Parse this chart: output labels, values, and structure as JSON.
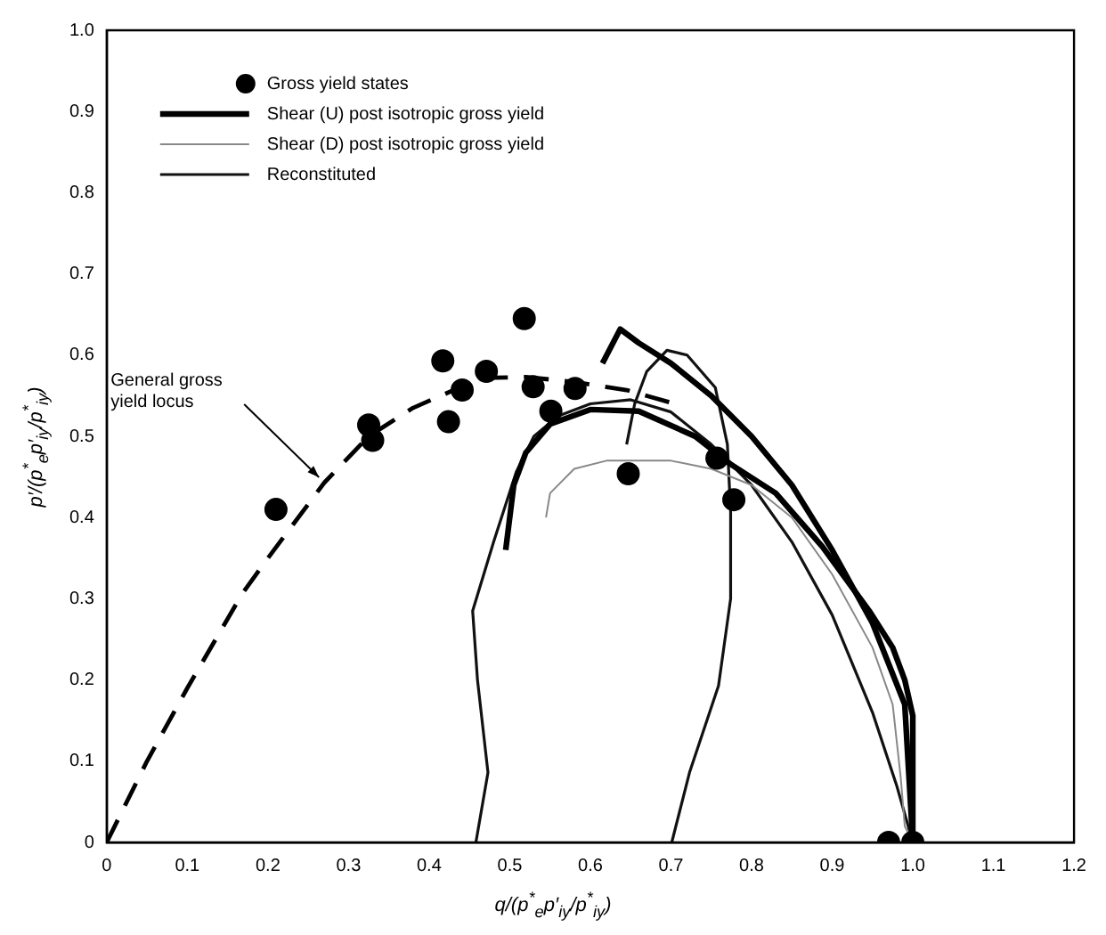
{
  "chart_data": {
    "type": "line",
    "xlabel": "q/(p$^{*}$$_{e}$p′$_{iy}$/p$^{*}$$_{iy}$)",
    "ylabel": "p′/(p$^{*}$$_{e}$p′$_{iy}$/p$^{*}$$_{iy}$)",
    "xlim": [
      0,
      1.2
    ],
    "ylim": [
      0,
      1.0
    ],
    "xticks": [
      0,
      0.1,
      0.2,
      0.3,
      0.4,
      0.5,
      0.6,
      0.7,
      0.8,
      0.9,
      {
        "value": 1,
        "label": "1.0"
      },
      1.1,
      1.2
    ],
    "yticks": [
      0,
      0.1,
      0.2,
      0.3,
      0.4,
      0.5,
      0.6,
      0.7,
      0.8,
      0.9,
      {
        "value": 1,
        "label": "1.0"
      }
    ],
    "grid": false,
    "legend": "top left",
    "series": [
      {
        "name": "Gross yield states",
        "type": "scatter",
        "marker": "circle",
        "color": "#000000",
        "x": [
          0.21,
          0.325,
          0.33,
          0.417,
          0.424,
          0.441,
          0.471,
          0.518,
          0.529,
          0.551,
          0.581,
          0.647,
          0.757,
          0.778,
          0.97,
          1.0
        ],
        "values": [
          0.41,
          0.514,
          0.495,
          0.593,
          0.518,
          0.557,
          0.58,
          0.645,
          0.561,
          0.531,
          0.559,
          0.454,
          0.473,
          0.422,
          0,
          0
        ]
      },
      {
        "name": "Shear (U) post isotropic gross yield",
        "color": "#000000",
        "x": [
          0.495,
          0.505,
          0.52,
          0.55,
          0.6,
          0.66,
          0.73,
          0.775,
          0.83,
          0.888,
          0.946,
          0.975,
          0.99,
          1.0,
          1.0
        ],
        "values": [
          0.36,
          0.44,
          0.48,
          0.515,
          0.533,
          0.531,
          0.5,
          0.465,
          0.43,
          0.364,
          0.285,
          0.24,
          0.2,
          0.156,
          0
        ]
      },
      {
        "color": "#000000",
        "x": [
          0.615,
          0.637,
          0.66,
          0.7,
          0.75,
          0.8,
          0.85,
          0.9,
          0.95,
          0.99,
          1.0
        ],
        "values": [
          0.59,
          0.632,
          0.615,
          0.59,
          0.55,
          0.5,
          0.44,
          0.36,
          0.27,
          0.17,
          0
        ]
      },
      {
        "name": "Shear (D) post isotropic gross yield",
        "color": "#888888",
        "x": [
          0.545,
          0.55,
          0.58,
          0.62,
          0.66,
          0.7,
          0.75,
          0.8,
          0.85,
          0.9,
          0.95,
          0.975,
          0.985,
          0.99,
          1.0
        ],
        "values": [
          0.4,
          0.43,
          0.46,
          0.47,
          0.47,
          0.47,
          0.46,
          0.44,
          0.4,
          0.33,
          0.24,
          0.17,
          0.08,
          0.02,
          0
        ]
      },
      {
        "name": "Reconstituted",
        "color": "#111111",
        "x": [
          0.458,
          0.473,
          0.46,
          0.454,
          0.48,
          0.508,
          0.53,
          0.56,
          0.6,
          0.65,
          0.7,
          0.75,
          0.8,
          0.85,
          0.9,
          0.95,
          0.98,
          1.0
        ],
        "values": [
          0,
          0.086,
          0.2,
          0.285,
          0.37,
          0.456,
          0.5,
          0.525,
          0.54,
          0.545,
          0.53,
          0.49,
          0.44,
          0.37,
          0.28,
          0.16,
          0.07,
          0
        ]
      },
      {
        "color": "#111111",
        "x": [
          0.701,
          0.723,
          0.759,
          0.774,
          0.774,
          0.77,
          0.755,
          0.72,
          0.695,
          0.67,
          0.655,
          0.645
        ],
        "values": [
          0,
          0.086,
          0.193,
          0.3,
          0.407,
          0.49,
          0.56,
          0.6,
          0.606,
          0.58,
          0.54,
          0.49
        ]
      },
      {
        "line_style": "dashed",
        "color": "#000000",
        "x": [
          0,
          0.05,
          0.1,
          0.168,
          0.2,
          0.27,
          0.325,
          0.38,
          0.465,
          0.52,
          0.58,
          0.645,
          0.705
        ],
        "values": [
          0,
          0.1,
          0.19,
          0.306,
          0.35,
          0.443,
          0.5,
          0.535,
          0.572,
          0.573,
          0.567,
          0.557,
          0.54
        ]
      }
    ],
    "annotations": [
      {
        "text": "General gross yield locus",
        "x": 0.27,
        "y": 0.443
      }
    ]
  }
}
